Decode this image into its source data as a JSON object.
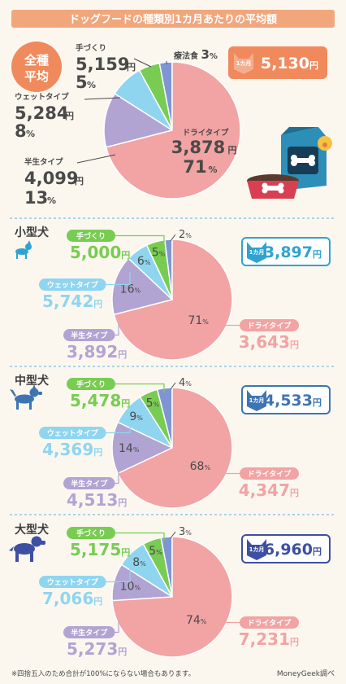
{
  "header": {
    "title": "ドッグフードの種類別1カ月あたりの平均額"
  },
  "footnote": "※四捨五入のため合計が100%にならない場合もあります。",
  "credit": "MoneyGeek調べ",
  "colors": {
    "dry": "#f2a3a3",
    "raw": "#b1a4d2",
    "wet": "#8fd5ef",
    "homemade": "#78cc52",
    "therapy": "#7f95d3",
    "header_bg": "#f2a67c",
    "divider": "#8ec7e6",
    "avg": "#f08a5d",
    "small": "#2fa3d0",
    "medium": "#3f74b3",
    "large": "#3d4fa3"
  },
  "chart_data": [
    {
      "type": "pie",
      "title": "全種平均",
      "monthly_badge": {
        "label": "1カ月",
        "value": "5,130",
        "unit": "円"
      },
      "slices": [
        {
          "name": "ドライタイプ",
          "price": "3,878",
          "unit": "円",
          "percent": 71,
          "pct_label": "71",
          "pct_unit": "%"
        },
        {
          "name": "半生タイプ",
          "price": "4,099",
          "unit": "円",
          "percent": 13,
          "pct_label": "13",
          "pct_unit": "%"
        },
        {
          "name": "ウェットタイプ",
          "price": "5,284",
          "unit": "円",
          "percent": 8,
          "pct_label": "8",
          "pct_unit": "%"
        },
        {
          "name": "手づくり",
          "price": "5,159",
          "unit": "円",
          "percent": 5,
          "pct_label": "5",
          "pct_unit": "%"
        },
        {
          "name": "療法食",
          "price": "",
          "unit": "",
          "percent": 3,
          "pct_label": "3",
          "pct_unit": "%"
        }
      ]
    },
    {
      "type": "pie",
      "title": "小型犬",
      "monthly_badge": {
        "label": "1カ月",
        "value": "3,897",
        "unit": "円"
      },
      "slices": [
        {
          "name": "ドライタイプ",
          "price": "3,643",
          "unit": "円",
          "percent": 71,
          "pct_label": "71",
          "pct_unit": "%"
        },
        {
          "name": "半生タイプ",
          "price": "3,892",
          "unit": "円",
          "percent": 16,
          "pct_label": "16",
          "pct_unit": "%"
        },
        {
          "name": "ウェットタイプ",
          "price": "5,742",
          "unit": "円",
          "percent": 6,
          "pct_label": "6",
          "pct_unit": "%"
        },
        {
          "name": "手づくり",
          "price": "5,000",
          "unit": "円",
          "percent": 5,
          "pct_label": "5",
          "pct_unit": "%"
        },
        {
          "name": "",
          "price": "",
          "unit": "",
          "percent": 2,
          "pct_label": "2",
          "pct_unit": "%"
        }
      ]
    },
    {
      "type": "pie",
      "title": "中型犬",
      "monthly_badge": {
        "label": "1カ月",
        "value": "4,533",
        "unit": "円"
      },
      "slices": [
        {
          "name": "ドライタイプ",
          "price": "4,347",
          "unit": "円",
          "percent": 68,
          "pct_label": "68",
          "pct_unit": "%"
        },
        {
          "name": "半生タイプ",
          "price": "4,513",
          "unit": "円",
          "percent": 14,
          "pct_label": "14",
          "pct_unit": "%"
        },
        {
          "name": "ウェットタイプ",
          "price": "4,369",
          "unit": "円",
          "percent": 9,
          "pct_label": "9",
          "pct_unit": "%"
        },
        {
          "name": "手づくり",
          "price": "5,478",
          "unit": "円",
          "percent": 5,
          "pct_label": "5",
          "pct_unit": "%"
        },
        {
          "name": "",
          "price": "",
          "unit": "",
          "percent": 4,
          "pct_label": "4",
          "pct_unit": "%"
        }
      ]
    },
    {
      "type": "pie",
      "title": "大型犬",
      "monthly_badge": {
        "label": "1カ月",
        "value": "6,960",
        "unit": "円"
      },
      "slices": [
        {
          "name": "ドライタイプ",
          "price": "7,231",
          "unit": "円",
          "percent": 74,
          "pct_label": "74",
          "pct_unit": "%"
        },
        {
          "name": "半生タイプ",
          "price": "5,273",
          "unit": "円",
          "percent": 10,
          "pct_label": "10",
          "pct_unit": "%"
        },
        {
          "name": "ウェットタイプ",
          "price": "7,066",
          "unit": "円",
          "percent": 8,
          "pct_label": "8",
          "pct_unit": "%"
        },
        {
          "name": "手づくり",
          "price": "5,175",
          "unit": "円",
          "percent": 5,
          "pct_label": "5",
          "pct_unit": "%"
        },
        {
          "name": "",
          "price": "",
          "unit": "",
          "percent": 3,
          "pct_label": "3",
          "pct_unit": "%"
        }
      ]
    }
  ]
}
